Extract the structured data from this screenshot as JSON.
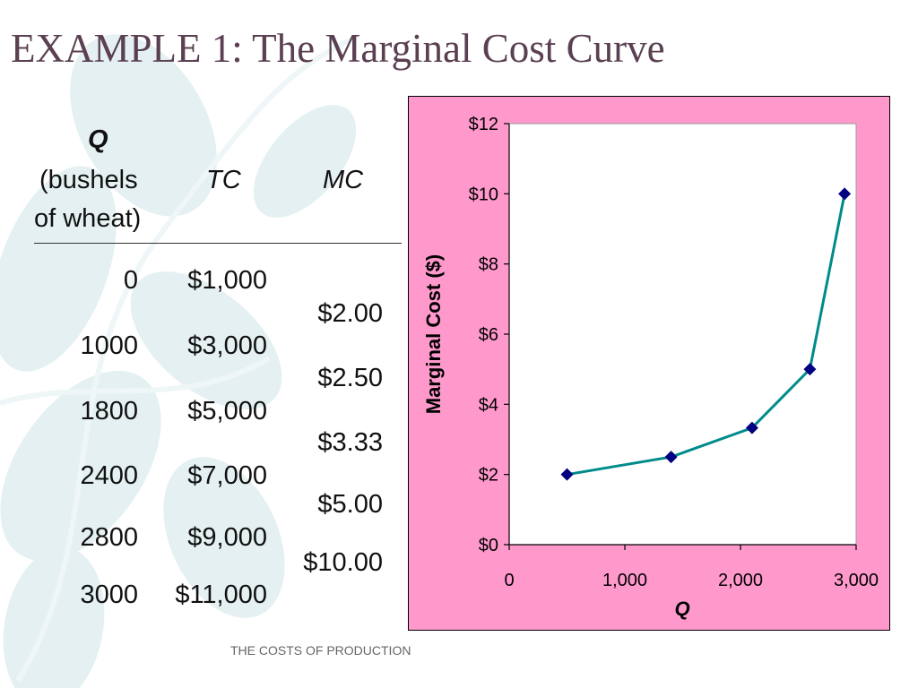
{
  "title": "EXAMPLE 1:  The Marginal Cost Curve",
  "table": {
    "header": {
      "q_title": "Q",
      "q_line1": "(bushels",
      "q_line2": "of wheat)",
      "tc": "TC",
      "mc": "MC"
    },
    "rows": [
      {
        "q": "0",
        "tc": "$1,000"
      },
      {
        "q": "1000",
        "tc": "$3,000"
      },
      {
        "q": "1800",
        "tc": "$5,000"
      },
      {
        "q": "2400",
        "tc": "$7,000"
      },
      {
        "q": "2800",
        "tc": "$9,000"
      },
      {
        "q": "3000",
        "tc": "$11,000"
      }
    ],
    "mc_values": [
      "$2.00",
      "$2.50",
      "$3.33",
      "$5.00",
      "$10.00"
    ]
  },
  "chart_data": {
    "type": "line",
    "xlabel": "Q",
    "ylabel": "Marginal Cost ($)",
    "xlim": [
      0,
      3000
    ],
    "ylim": [
      0,
      12
    ],
    "x_ticks": [
      0,
      1000,
      2000,
      3000
    ],
    "x_tick_labels": [
      "0",
      "1,000",
      "2,000",
      "3,000"
    ],
    "y_ticks": [
      0,
      2,
      4,
      6,
      8,
      10,
      12
    ],
    "y_tick_labels": [
      "$0",
      "$2",
      "$4",
      "$6",
      "$8",
      "$10",
      "$12"
    ],
    "grid": false,
    "series": [
      {
        "x": [
          500,
          1400,
          2100,
          2600,
          2900
        ],
        "y": [
          2.0,
          2.5,
          3.33,
          5.0,
          10.0
        ]
      }
    ],
    "colors": {
      "frame_bg": "#ff99cc",
      "line": "#008b8b",
      "marker": "#000080"
    }
  },
  "footer": "THE COSTS OF PRODUCTION"
}
